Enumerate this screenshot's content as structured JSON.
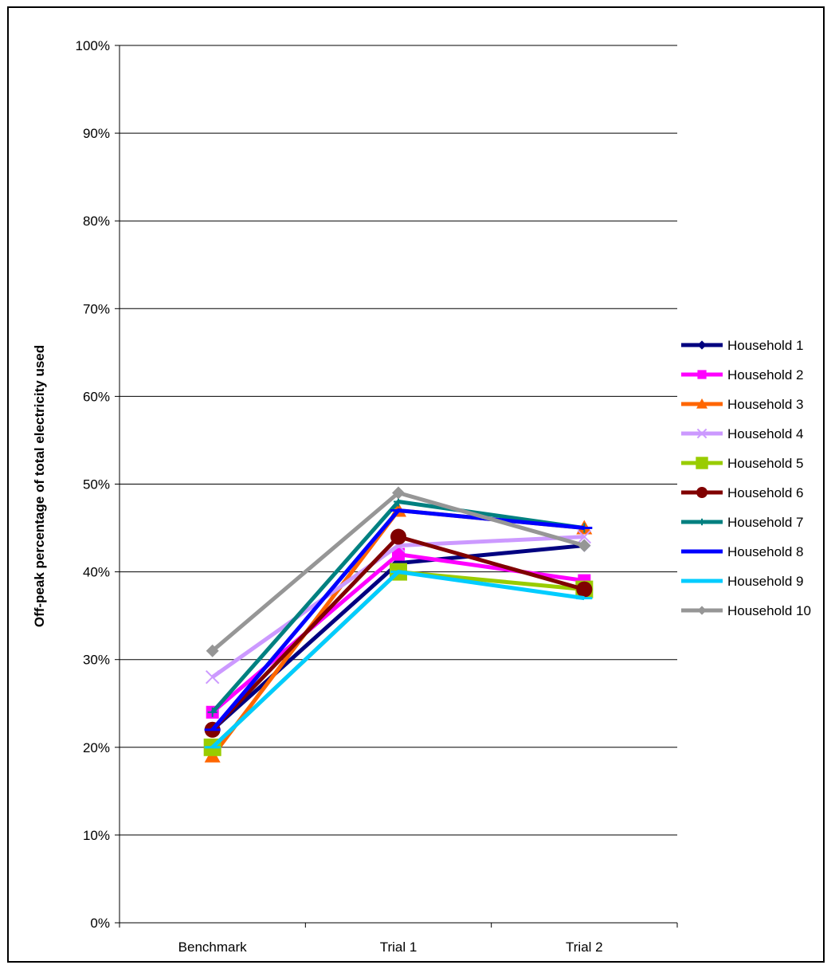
{
  "chart_data": {
    "type": "line",
    "title": "",
    "xlabel": "",
    "ylabel": "Off-peak percentage of total electricity used",
    "categories": [
      "Benchmark",
      "Trial 1",
      "Trial 2"
    ],
    "ylim": [
      0,
      100
    ],
    "yticks": [
      0,
      10,
      20,
      30,
      40,
      50,
      60,
      70,
      80,
      90,
      100
    ],
    "ytick_labels": [
      "0%",
      "10%",
      "20%",
      "30%",
      "40%",
      "50%",
      "60%",
      "70%",
      "80%",
      "90%",
      "100%"
    ],
    "grid": "horizontal",
    "legend_position": "right",
    "series": [
      {
        "name": "Household 1",
        "values": [
          22,
          41,
          43
        ],
        "color": "#000080",
        "marker": "diamond"
      },
      {
        "name": "Household 2",
        "values": [
          24,
          42,
          39
        ],
        "color": "#FF00FF",
        "marker": "square"
      },
      {
        "name": "Household 3",
        "values": [
          19,
          47,
          45
        ],
        "color": "#FF6600",
        "marker": "triangle"
      },
      {
        "name": "Household 4",
        "values": [
          28,
          43,
          44
        ],
        "color": "#CC99FF",
        "marker": "x"
      },
      {
        "name": "Household 5",
        "values": [
          20,
          40,
          38
        ],
        "color": "#99CC00",
        "marker": "square-large"
      },
      {
        "name": "Household 6",
        "values": [
          22,
          44,
          38
        ],
        "color": "#800000",
        "marker": "circle"
      },
      {
        "name": "Household 7",
        "values": [
          24,
          48,
          45
        ],
        "color": "#008080",
        "marker": "plus"
      },
      {
        "name": "Household 8",
        "values": [
          22,
          47,
          45
        ],
        "color": "#0000FF",
        "marker": "dash"
      },
      {
        "name": "Household 9",
        "values": [
          20,
          40,
          37
        ],
        "color": "#00CCFF",
        "marker": "dash"
      },
      {
        "name": "Household 10",
        "values": [
          31,
          49,
          43
        ],
        "color": "#969696",
        "marker": "diamond"
      }
    ]
  }
}
